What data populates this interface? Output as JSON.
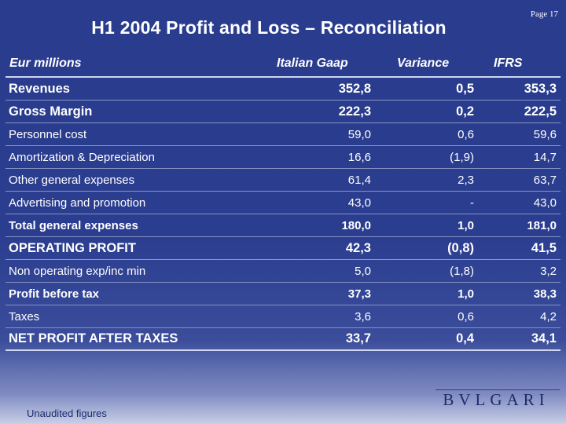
{
  "header": {
    "title": "H1 2004 Profit and Loss – Reconciliation",
    "page": "Page 17"
  },
  "columns": {
    "label": "Eur millions",
    "c1": "Italian Gaap",
    "c2": "Variance",
    "c3": "IFRS"
  },
  "rows": [
    {
      "label": "Revenues",
      "v1": "352,8",
      "v2": "0,5",
      "v3": "353,3",
      "style": "big"
    },
    {
      "label": "Gross Margin",
      "v1": "222,3",
      "v2": "0,2",
      "v3": "222,5",
      "style": "big"
    },
    {
      "label": "Personnel cost",
      "v1": "59,0",
      "v2": "0,6",
      "v3": "59,6",
      "style": "small"
    },
    {
      "label": "Amortization & Depreciation",
      "v1": "16,6",
      "v2": "(1,9)",
      "v3": "14,7",
      "style": "small"
    },
    {
      "label": "Other general expenses",
      "v1": "61,4",
      "v2": "2,3",
      "v3": "63,7",
      "style": "small"
    },
    {
      "label": "Advertising and promotion",
      "v1": "43,0",
      "v2": "-",
      "v3": "43,0",
      "style": "small"
    },
    {
      "label": "Total general expenses",
      "v1": "180,0",
      "v2": "1,0",
      "v3": "181,0",
      "style": "bold"
    },
    {
      "label": "OPERATING PROFIT",
      "v1": "42,3",
      "v2": "(0,8)",
      "v3": "41,5",
      "style": "big"
    },
    {
      "label": "Non operating exp/inc min",
      "v1": "5,0",
      "v2": "(1,8)",
      "v3": "3,2",
      "style": "small"
    },
    {
      "label": "Profit before tax",
      "v1": "37,3",
      "v2": "1,0",
      "v3": "38,3",
      "style": "bold"
    },
    {
      "label": "Taxes",
      "v1": "3,6",
      "v2": "0,6",
      "v3": "4,2",
      "style": "small"
    },
    {
      "label": "NET PROFIT AFTER TAXES",
      "v1": "33,7",
      "v2": "0,4",
      "v3": "34,1",
      "style": "big"
    }
  ],
  "footer": {
    "note": "Unaudited figures",
    "logo": "BVLGARI"
  }
}
